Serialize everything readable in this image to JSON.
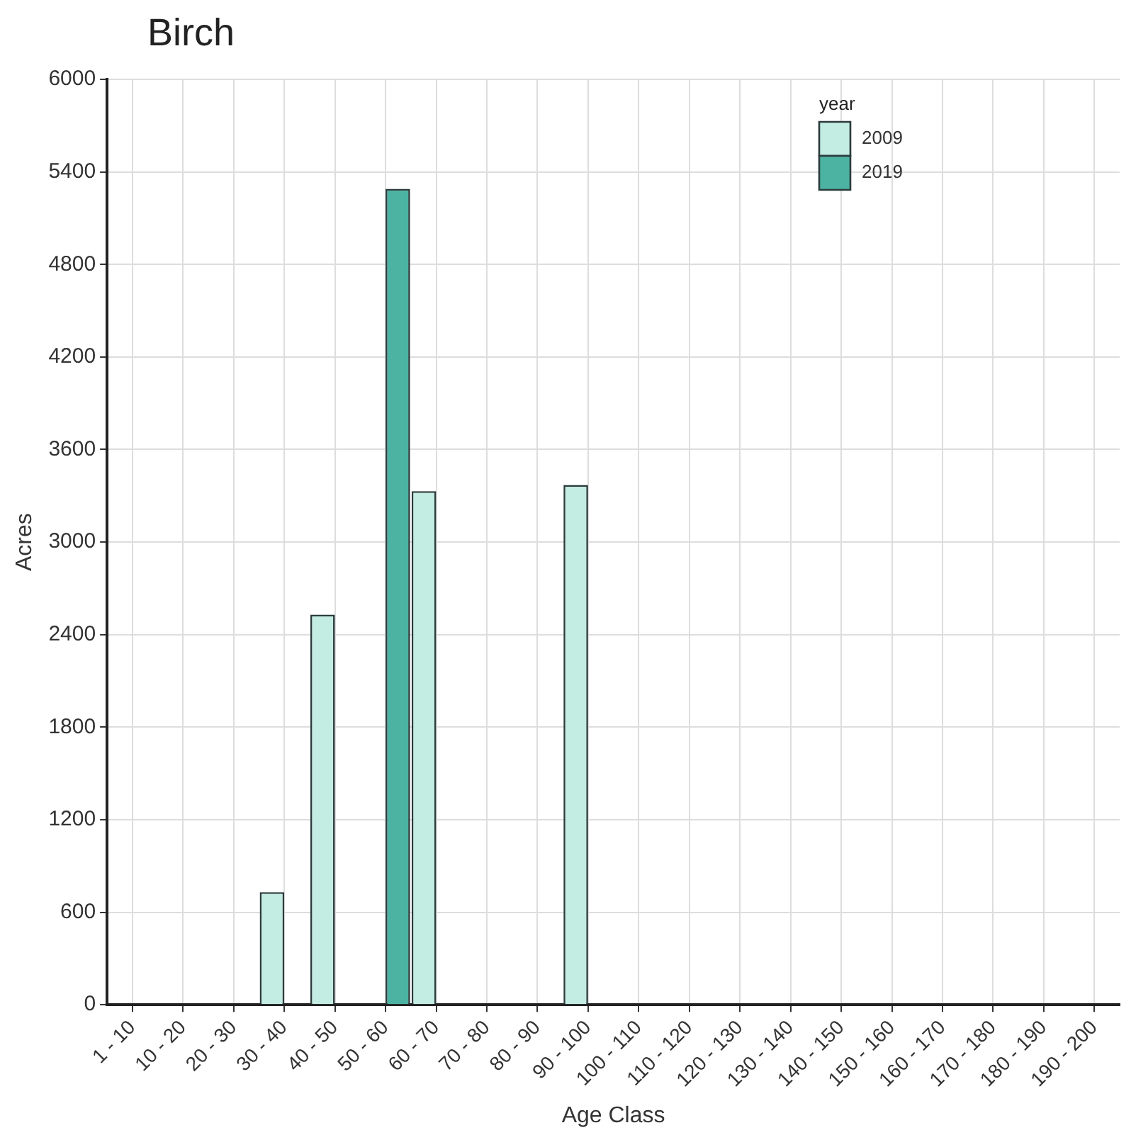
{
  "chart_data": {
    "type": "bar",
    "title": "Birch",
    "xlabel": "Age Class",
    "ylabel": "Acres",
    "legend_title": "year",
    "categories": [
      "1 - 10",
      "10 - 20",
      "20 - 30",
      "30 - 40",
      "40 - 50",
      "50 - 60",
      "60 - 70",
      "70 - 80",
      "80 - 90",
      "90 - 100",
      "100 - 110",
      "110 - 120",
      "120 - 130",
      "130 - 140",
      "140 - 150",
      "150 - 160",
      "160 - 170",
      "170 - 180",
      "180 - 190",
      "190 - 200"
    ],
    "series": [
      {
        "name": "2009",
        "color": "#c3ece2",
        "values": [
          null,
          null,
          null,
          730,
          2530,
          null,
          3330,
          null,
          null,
          3370,
          null,
          null,
          null,
          null,
          null,
          null,
          null,
          null,
          null,
          null
        ]
      },
      {
        "name": "2019",
        "color": "#4cb3a3",
        "values": [
          null,
          null,
          null,
          null,
          null,
          5290,
          null,
          null,
          null,
          null,
          null,
          null,
          null,
          null,
          null,
          null,
          null,
          null,
          null,
          null
        ]
      }
    ],
    "ylim": [
      0,
      6000
    ],
    "yticks": [
      0,
      600,
      1200,
      1800,
      2400,
      3000,
      3600,
      4200,
      4800,
      5400,
      6000
    ],
    "grid": true,
    "legend": "top right"
  }
}
